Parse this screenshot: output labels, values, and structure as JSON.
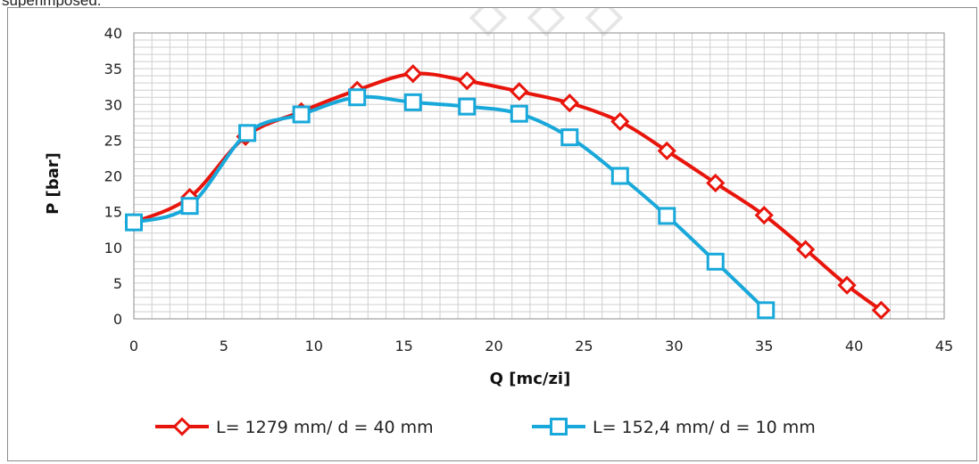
{
  "page": {
    "top_text": "superimposed."
  },
  "chart_data": {
    "type": "line",
    "xlabel": "Q  [mc/zi]",
    "ylabel": "P [bar]",
    "xlim": [
      0,
      45
    ],
    "ylim": [
      0,
      40
    ],
    "xticks": [
      "0",
      "5",
      "10",
      "15",
      "20",
      "25",
      "30",
      "35",
      "40",
      "45"
    ],
    "yticks": [
      "0",
      "5",
      "10",
      "15",
      "20",
      "25",
      "30",
      "35",
      "40"
    ],
    "grid": true,
    "legend_position": "bottom",
    "series": [
      {
        "name": "L= 1279 mm/ d = 40 mm",
        "color": "#e8150c",
        "marker": "diamond",
        "x": [
          0,
          3.1,
          6.2,
          9.3,
          12.4,
          15.5,
          18.5,
          21.4,
          24.2,
          27,
          29.6,
          32.3,
          35,
          37.3,
          39.6,
          41.5
        ],
        "y": [
          13.5,
          17,
          25.5,
          29,
          32,
          34.3,
          33.3,
          31.8,
          30.2,
          27.6,
          23.5,
          19,
          14.5,
          9.7,
          4.7,
          1.2
        ]
      },
      {
        "name": "L= 152,4 mm/ d = 10 mm",
        "color": "#18a8da",
        "marker": "square",
        "x": [
          0,
          3.1,
          6.3,
          9.3,
          12.4,
          15.5,
          18.5,
          21.4,
          24.2,
          27,
          29.6,
          32.3,
          35.1
        ],
        "y": [
          13.5,
          15.8,
          26,
          28.6,
          31,
          30.3,
          29.7,
          28.7,
          25.4,
          20,
          14.4,
          8,
          1.2
        ]
      }
    ]
  }
}
